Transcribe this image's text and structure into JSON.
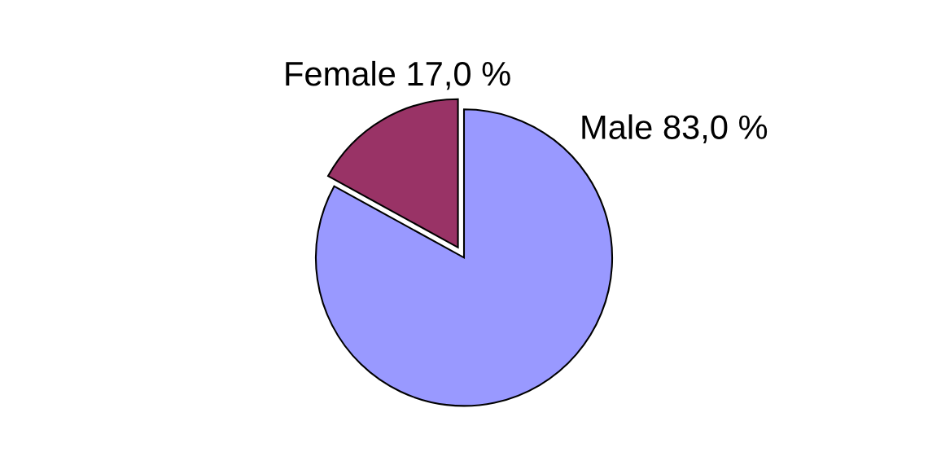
{
  "chart_data": {
    "type": "pie",
    "categories": [
      "Female",
      "Male"
    ],
    "values": [
      17.0,
      83.0
    ],
    "value_labels": [
      "17,0 %",
      "83,0 %"
    ],
    "colors": [
      "#993366",
      "#9999ff"
    ],
    "legend": false
  }
}
